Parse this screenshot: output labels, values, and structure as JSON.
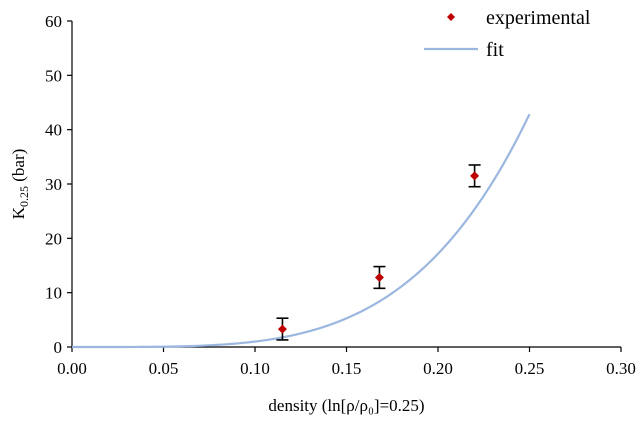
{
  "chart_data": {
    "type": "scatter",
    "title": "",
    "xlabel": "density (ln[ρ/ρ₀]=0.25)",
    "ylabel": "K0.25 (bar)",
    "ylabel_parts": {
      "main": "K",
      "sub": "0.25",
      "rest": " (bar)"
    },
    "xlim": [
      0,
      0.3
    ],
    "ylim": [
      0,
      60
    ],
    "x_ticks": [
      0.0,
      0.05,
      0.1,
      0.15,
      0.2,
      0.25,
      0.3
    ],
    "x_tick_labels": [
      "0.00",
      "0.05",
      "0.10",
      "0.15",
      "0.20",
      "0.25",
      "0.30"
    ],
    "y_ticks": [
      0,
      10,
      20,
      30,
      40,
      50,
      60
    ],
    "y_tick_labels": [
      "0",
      "10",
      "20",
      "30",
      "40",
      "50",
      "60"
    ],
    "grid": false,
    "legend_position": "top-right",
    "series": [
      {
        "name": "experimental",
        "kind": "points_with_error_bars",
        "color": "#c00000",
        "points": [
          {
            "x": 0.115,
            "y": 3.3,
            "err": 2.0
          },
          {
            "x": 0.168,
            "y": 12.8,
            "err": 2.0
          },
          {
            "x": 0.22,
            "y": 31.5,
            "err": 2.0
          }
        ]
      },
      {
        "name": "fit",
        "kind": "line",
        "color": "#9bb7e0",
        "x_range": [
          0.0,
          0.25
        ],
        "model": "y = a * x^b",
        "params": {
          "a": 12600,
          "b": 4.1
        }
      }
    ]
  }
}
